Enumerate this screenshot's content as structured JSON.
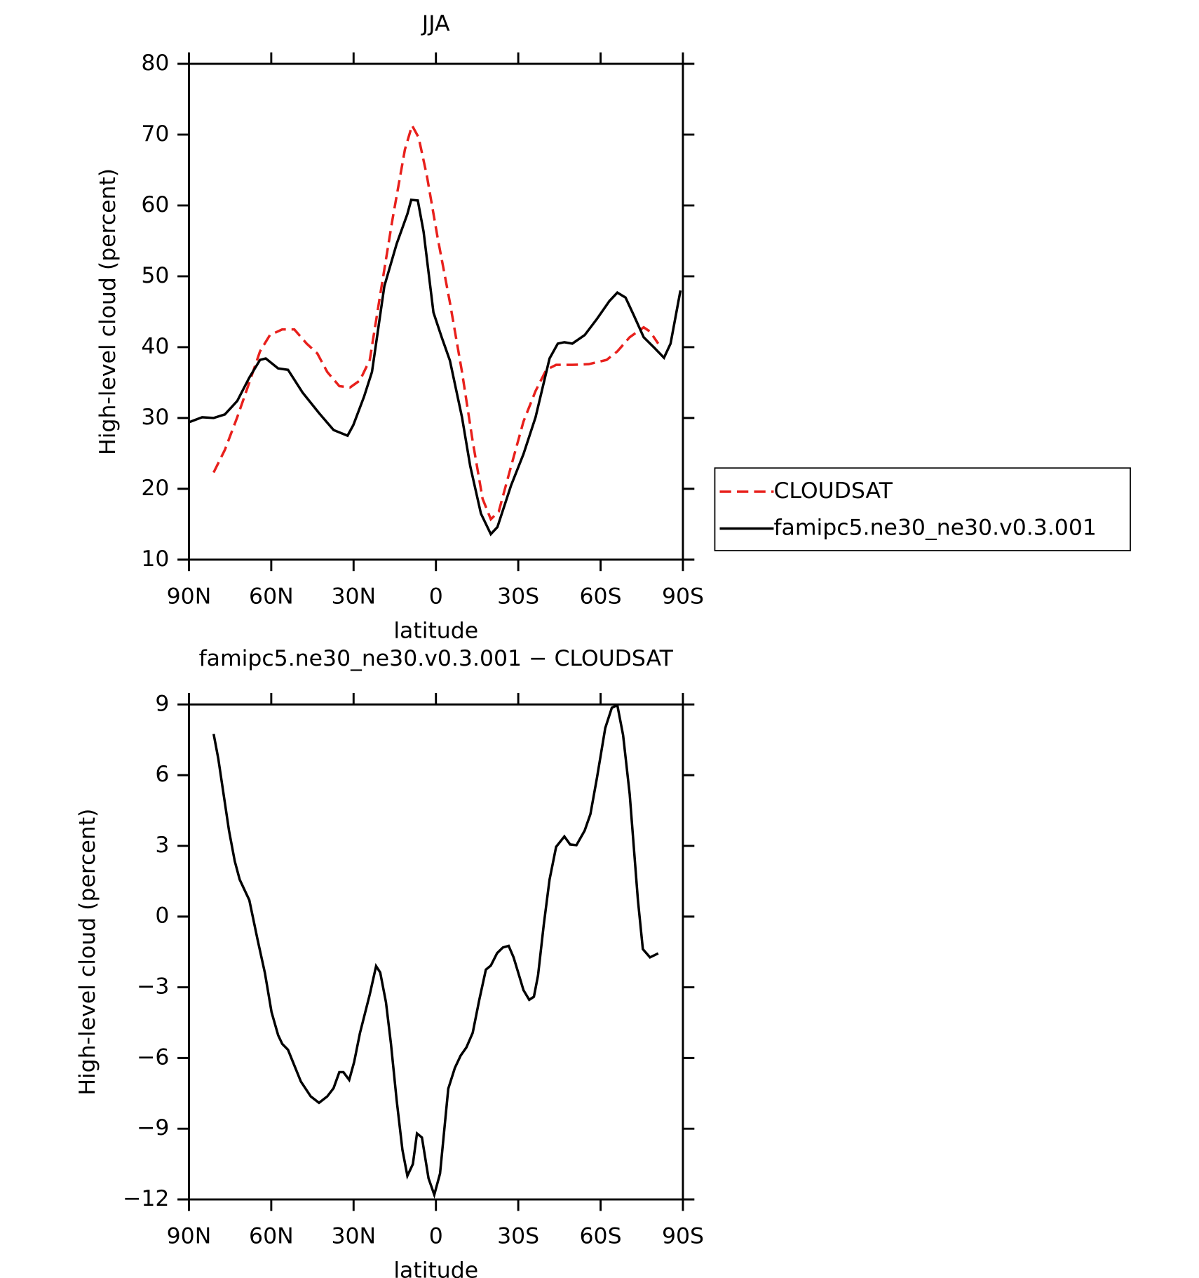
{
  "chart_data": [
    {
      "type": "line",
      "title": "JJA",
      "xlabel": "latitude",
      "ylabel": "High-level cloud (percent)",
      "xlim": [
        90,
        -90
      ],
      "ylim": [
        10,
        80
      ],
      "xticks": [
        {
          "value": 90,
          "label": "90N"
        },
        {
          "value": 60,
          "label": "60N"
        },
        {
          "value": 30,
          "label": "30N"
        },
        0,
        {
          "value": -30,
          "label": "30S"
        },
        {
          "value": -60,
          "label": "60S"
        },
        {
          "value": -90,
          "label": "90S"
        }
      ],
      "yticks": [
        10,
        20,
        30,
        40,
        50,
        60,
        70,
        80
      ],
      "series": [
        {
          "name": "CLOUDSAT",
          "color": "#e8201c",
          "dashed": true,
          "x": [
            81,
            76.9,
            72.4,
            68,
            64.1,
            60.5,
            56,
            51.6,
            47.1,
            43.2,
            39.6,
            35.2,
            31.3,
            27.7,
            24.1,
            20.3,
            15.8,
            11.3,
            8.7,
            6.3,
            3.3,
            -0.6,
            -5.1,
            -9.5,
            -13.4,
            -17,
            -20,
            -22.9,
            -27.4,
            -31.9,
            -36.3,
            -40.2,
            -43.8,
            -49.7,
            -55.7,
            -62.2,
            -66.1,
            -70.6,
            -75.7,
            -78,
            -81
          ],
          "values": [
            22.3,
            25.5,
            30.1,
            35,
            39.4,
            41.7,
            42.5,
            42.5,
            40.5,
            39.1,
            36.5,
            34.5,
            34.3,
            35.3,
            38.2,
            47.4,
            58.1,
            67.9,
            71.3,
            69.6,
            64.2,
            55.5,
            46.3,
            36.5,
            26.7,
            18.6,
            15.7,
            16.8,
            23.2,
            29.5,
            33.8,
            36.8,
            37.5,
            37.5,
            37.6,
            38.2,
            39.4,
            41.4,
            42.8,
            42.2,
            40.5
          ]
        },
        {
          "name": "famipc5.ne30_ne30.v0.3.001",
          "color": "#000000",
          "dashed": false,
          "x": [
            90,
            85.2,
            81,
            76.9,
            72.4,
            68,
            64.1,
            62,
            57.5,
            53.9,
            48.6,
            42.6,
            37.3,
            32.2,
            30.1,
            26.2,
            23.3,
            18.8,
            14.3,
            10.4,
            9,
            6.6,
            4.5,
            0.9,
            -2.1,
            -5.1,
            -9.5,
            -12.5,
            -16.4,
            -20,
            -22.4,
            -27.4,
            -31.9,
            -36.3,
            -41.4,
            -44.4,
            -46.8,
            -49.7,
            -54.2,
            -58.7,
            -63.2,
            -66.1,
            -69.1,
            -72.1,
            -75.7,
            -79.6,
            -83.1,
            -85.5,
            -89.1
          ],
          "values": [
            29.4,
            30.1,
            30,
            30.5,
            32.4,
            35.7,
            38.2,
            38.4,
            37,
            36.8,
            33.6,
            30.7,
            28.3,
            27.5,
            29,
            33,
            36.5,
            48.6,
            54.6,
            58.8,
            60.8,
            60.7,
            56.3,
            44.9,
            41.4,
            38.1,
            30.1,
            23.2,
            16.5,
            13.6,
            14.6,
            20.5,
            24.9,
            30.1,
            38.4,
            40.5,
            40.7,
            40.5,
            41.7,
            44,
            46.5,
            47.7,
            47,
            44.5,
            41.4,
            39.9,
            38.5,
            40.5,
            48
          ]
        }
      ]
    },
    {
      "type": "line",
      "title": "famipc5.ne30_ne30.v0.3.001 − CLOUDSAT",
      "xlabel": "latitude",
      "ylabel": "High-level cloud (percent)",
      "xlim": [
        90,
        -90
      ],
      "ylim": [
        -12,
        9
      ],
      "xticks": [
        {
          "value": 90,
          "label": "90N"
        },
        {
          "value": 60,
          "label": "60N"
        },
        {
          "value": 30,
          "label": "30N"
        },
        0,
        {
          "value": -30,
          "label": "30S"
        },
        {
          "value": -60,
          "label": "60S"
        },
        {
          "value": -90,
          "label": "90S"
        }
      ],
      "yticks": [
        {
          "value": -12,
          "label": "−12"
        },
        {
          "value": -9,
          "label": "−9"
        },
        {
          "value": -6,
          "label": "−6"
        },
        {
          "value": -3,
          "label": "−3"
        },
        0,
        3,
        6,
        9
      ],
      "series": [
        {
          "color": "#000000",
          "dashed": false,
          "x": [
            81,
            79.3,
            75.4,
            73.3,
            71.5,
            68,
            65,
            62.3,
            59.9,
            57.5,
            56,
            53.9,
            52.2,
            49.2,
            45.6,
            42.6,
            39.6,
            37.3,
            35.2,
            33.7,
            31.6,
            29.8,
            27.7,
            24.1,
            21.8,
            20.3,
            18.2,
            16.4,
            14.3,
            12.2,
            10.4,
            8.4,
            6.9,
            5.1,
            2.7,
            0.6,
            -1.5,
            -4.5,
            -6.9,
            -9,
            -11.1,
            -13.4,
            -15.8,
            -18.2,
            -20,
            -22.3,
            -24.4,
            -26.5,
            -28.3,
            -30.1,
            -31.9,
            -34,
            -35.7,
            -37.2,
            -39.3,
            -41.4,
            -43.8,
            -46.8,
            -48.9,
            -51.2,
            -54.2,
            -56.3,
            -58.7,
            -61.7,
            -64.1,
            -66.1,
            -68.2,
            -70.6,
            -73.6,
            -75.4,
            -78,
            -81
          ],
          "values": [
            7.75,
            6.7,
            3.65,
            2.35,
            1.57,
            0.7,
            -0.97,
            -2.4,
            -4.05,
            -5.03,
            -5.4,
            -5.65,
            -6.14,
            -7,
            -7.63,
            -7.9,
            -7.63,
            -7.28,
            -6.6,
            -6.6,
            -6.93,
            -6.17,
            -4.95,
            -3.3,
            -2.1,
            -2.37,
            -3.64,
            -5.38,
            -7.8,
            -9.9,
            -11,
            -10.5,
            -9.2,
            -9.37,
            -11.1,
            -11.8,
            -10.9,
            -7.3,
            -6.42,
            -5.9,
            -5.55,
            -4.93,
            -3.53,
            -2.25,
            -2.08,
            -1.55,
            -1.31,
            -1.24,
            -1.73,
            -2.42,
            -3.12,
            -3.53,
            -3.4,
            -2.5,
            -0.34,
            1.57,
            2.96,
            3.4,
            3.06,
            3.03,
            3.65,
            4.35,
            5.9,
            8,
            8.86,
            8.97,
            7.7,
            5.2,
            0.7,
            -1.38,
            -1.73,
            -1.56
          ]
        }
      ]
    }
  ]
}
